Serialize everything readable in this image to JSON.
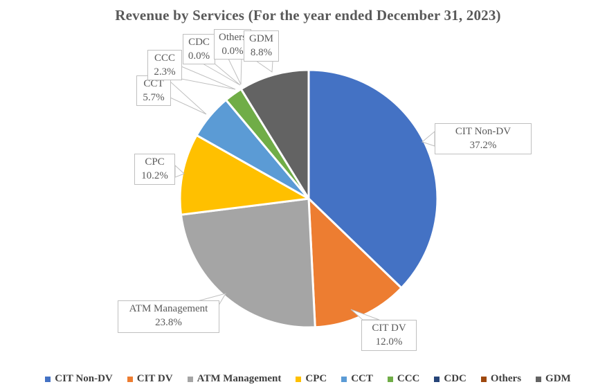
{
  "title": "Revenue by Services (For the year ended December 31, 2023)",
  "chart_data": {
    "type": "pie",
    "title": "Revenue by Services (For the year ended December 31, 2023)",
    "direction": "clockwise",
    "start_angle_deg": 0,
    "legend_position": "bottom",
    "slice_border_color": "#FFFFFF",
    "series": [
      {
        "name": "CIT Non-DV",
        "value": 37.2,
        "pct_label": "37.2%",
        "color": "#4472C4"
      },
      {
        "name": "CIT DV",
        "value": 12.0,
        "pct_label": "12.0%",
        "color": "#ED7D31"
      },
      {
        "name": "ATM Management",
        "value": 23.8,
        "pct_label": "23.8%",
        "color": "#A5A5A5"
      },
      {
        "name": "CPC",
        "value": 10.2,
        "pct_label": "10.2%",
        "color": "#FFC000"
      },
      {
        "name": "CCT",
        "value": 5.7,
        "pct_label": "5.7%",
        "color": "#5B9BD5"
      },
      {
        "name": "CCC",
        "value": 2.3,
        "pct_label": "2.3%",
        "color": "#70AD47"
      },
      {
        "name": "CDC",
        "value": 0.0,
        "pct_label": "0.0%",
        "color": "#264478"
      },
      {
        "name": "Others",
        "value": 0.0,
        "pct_label": "0.0%",
        "color": "#9E480E"
      },
      {
        "name": "GDM",
        "value": 8.8,
        "pct_label": "8.8%",
        "color": "#636363"
      }
    ]
  },
  "callouts": {
    "cit_non_dv": {
      "label": "CIT Non-DV",
      "value": "37.2%"
    },
    "cit_dv": {
      "label": "CIT DV",
      "value": "12.0%"
    },
    "atm": {
      "label": "ATM Management",
      "value": "23.8%"
    },
    "cpc": {
      "label": "CPC",
      "value": "10.2%"
    },
    "cct": {
      "label": "CCT",
      "value": "5.7%"
    },
    "ccc": {
      "label": "CCC",
      "value": "2.3%"
    },
    "cdc": {
      "label": "CDC",
      "value": "0.0%"
    },
    "others": {
      "label": "Others",
      "value": "0.0%"
    },
    "gdm": {
      "label": "GDM",
      "value": "8.8%"
    }
  },
  "legend": {
    "items": [
      {
        "label": "CIT Non-DV",
        "color": "#4472C4"
      },
      {
        "label": "CIT DV",
        "color": "#ED7D31"
      },
      {
        "label": "ATM Management",
        "color": "#A5A5A5"
      },
      {
        "label": "CPC",
        "color": "#FFC000"
      },
      {
        "label": "CCT",
        "color": "#5B9BD5"
      },
      {
        "label": "CCC",
        "color": "#70AD47"
      },
      {
        "label": "CDC",
        "color": "#264478"
      },
      {
        "label": "Others",
        "color": "#9E480E"
      },
      {
        "label": "GDM",
        "color": "#636363"
      }
    ]
  },
  "colors": {
    "title_text": "#595959",
    "label_text": "#595959",
    "legend_text": "#404040",
    "callout_border": "#BFBFBF"
  }
}
